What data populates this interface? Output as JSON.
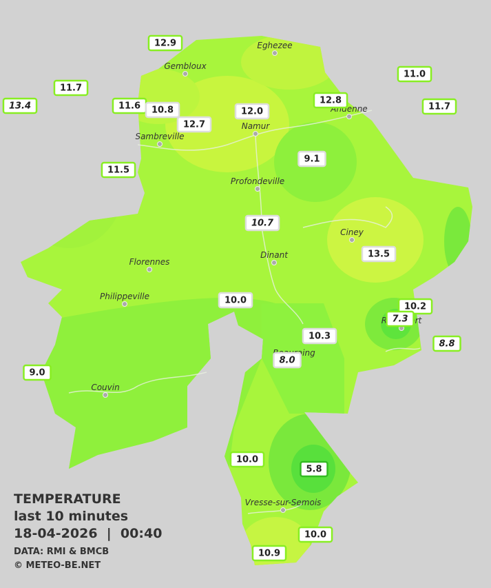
{
  "legend": {
    "title": "TEMPERATURE",
    "subtitle": "last 10 minutes",
    "datetime": "18-04-2026  |  00:40",
    "source": "DATA: RMI & BMCB",
    "copyright": "© METEO-BE.NET"
  },
  "towns": [
    "Eghezee",
    "Gembloux",
    "Andenne",
    "Namur",
    "Sambreville",
    "Profondeville",
    "Ciney",
    "Dinant",
    "Florennes",
    "Philippeville",
    "Rochefort",
    "Beauraing",
    "Couvin",
    "Vresse-sur-Semois"
  ],
  "stations": [
    {
      "value": "12.9",
      "italic": false
    },
    {
      "value": "11.7",
      "italic": false
    },
    {
      "value": "13.4",
      "italic": true
    },
    {
      "value": "11.6",
      "italic": false
    },
    {
      "value": "10.8",
      "italic": false
    },
    {
      "value": "12.7",
      "italic": false
    },
    {
      "value": "12.0",
      "italic": false
    },
    {
      "value": "12.8",
      "italic": false
    },
    {
      "value": "11.0",
      "italic": false
    },
    {
      "value": "11.7",
      "italic": false
    },
    {
      "value": "11.5",
      "italic": false
    },
    {
      "value": "9.1",
      "italic": false
    },
    {
      "value": "10.7",
      "italic": true
    },
    {
      "value": "13.5",
      "italic": false
    },
    {
      "value": "10.0",
      "italic": false
    },
    {
      "value": "10.2",
      "italic": false
    },
    {
      "value": "7.3",
      "italic": true
    },
    {
      "value": "10.3",
      "italic": false
    },
    {
      "value": "8.8",
      "italic": true
    },
    {
      "value": "8.0",
      "italic": true
    },
    {
      "value": "9.0",
      "italic": false
    },
    {
      "value": "10.0",
      "italic": false
    },
    {
      "value": "5.8",
      "italic": false
    },
    {
      "value": "10.0",
      "italic": false
    },
    {
      "value": "10.9",
      "italic": false
    }
  ]
}
